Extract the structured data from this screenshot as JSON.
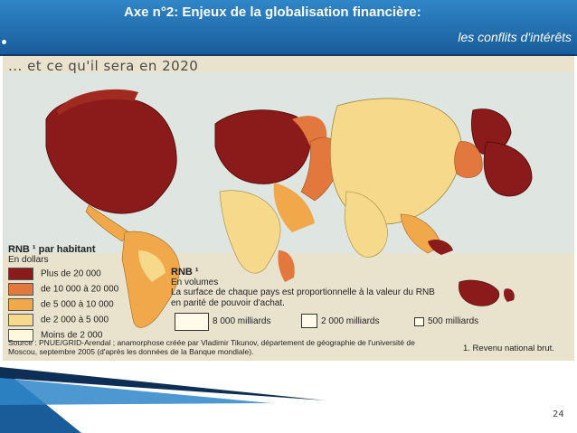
{
  "slide": {
    "title": "Axe n°2: Enjeux de la globalisation financière:",
    "subtitle": "les conflits d'intérêts",
    "page_number": "24"
  },
  "figure": {
    "heading": "... et ce qu'il sera en 2020",
    "legend_per_capita": {
      "title": "RNB ¹ par habitant",
      "subtitle": "En dollars",
      "items": [
        {
          "label": "Plus de 20 000",
          "color": "#8b1a1a"
        },
        {
          "label": "de 10 000 à 20 000",
          "color": "#e3783e"
        },
        {
          "label": "de 5 000 à 10 000",
          "color": "#f0a84a"
        },
        {
          "label": "de 2 000 à 5 000",
          "color": "#f6d98a"
        },
        {
          "label": "Moins de  2 000",
          "color": "#fff8dc"
        }
      ]
    },
    "legend_volume": {
      "title": "RNB ¹",
      "subtitle": "En volumes",
      "description": "La surface de chaque pays est proportionnelle à la valeur du RNB en parité de pouvoir d'achat.",
      "sizes": [
        "8 000 milliards",
        "2 000 milliards",
        "500 milliards"
      ]
    },
    "source": "Source : PNUE/GRID-Arendal ; anamorphose créée par Vladimir Tikunov, département de géographie de l'université  de Moscou, septembre 2005 (d'après les données de la Banque mondiale).",
    "footnote": "1. Revenu national brut."
  }
}
